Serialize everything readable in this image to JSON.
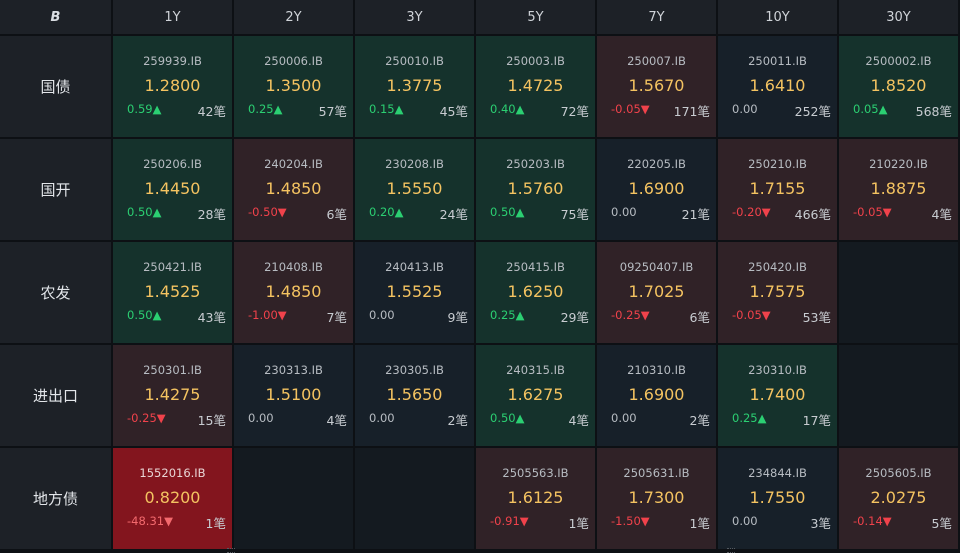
{
  "header": {
    "corner_label": "B",
    "columns": [
      "1Y",
      "2Y",
      "3Y",
      "5Y",
      "7Y",
      "10Y",
      "30Y"
    ]
  },
  "rows": [
    {
      "label": "国债",
      "cells": [
        {
          "code": "259939.IB",
          "price": "1.2800",
          "change": "0.59▲",
          "count": "42笔",
          "state": "up"
        },
        {
          "code": "250006.IB",
          "price": "1.3500",
          "change": "0.25▲",
          "count": "57笔",
          "state": "up"
        },
        {
          "code": "250010.IB",
          "price": "1.3775",
          "change": "0.15▲",
          "count": "45笔",
          "state": "up"
        },
        {
          "code": "250003.IB",
          "price": "1.4725",
          "change": "0.40▲",
          "count": "72笔",
          "state": "up"
        },
        {
          "code": "250007.IB",
          "price": "1.5670",
          "change": "-0.05▼",
          "count": "171笔",
          "state": "down"
        },
        {
          "code": "250011.IB",
          "price": "1.6410",
          "change": "0.00",
          "count": "252笔",
          "state": "flat"
        },
        {
          "code": "2500002.IB",
          "price": "1.8520",
          "change": "0.05▲",
          "count": "568笔",
          "state": "up"
        }
      ]
    },
    {
      "label": "国开",
      "cells": [
        {
          "code": "250206.IB",
          "price": "1.4450",
          "change": "0.50▲",
          "count": "28笔",
          "state": "up"
        },
        {
          "code": "240204.IB",
          "price": "1.4850",
          "change": "-0.50▼",
          "count": "6笔",
          "state": "down"
        },
        {
          "code": "230208.IB",
          "price": "1.5550",
          "change": "0.20▲",
          "count": "24笔",
          "state": "up"
        },
        {
          "code": "250203.IB",
          "price": "1.5760",
          "change": "0.50▲",
          "count": "75笔",
          "state": "up"
        },
        {
          "code": "220205.IB",
          "price": "1.6900",
          "change": "0.00",
          "count": "21笔",
          "state": "flat"
        },
        {
          "code": "250210.IB",
          "price": "1.7155",
          "change": "-0.20▼",
          "count": "466笔",
          "state": "down"
        },
        {
          "code": "210220.IB",
          "price": "1.8875",
          "change": "-0.05▼",
          "count": "4笔",
          "state": "down"
        }
      ]
    },
    {
      "label": "农发",
      "cells": [
        {
          "code": "250421.IB",
          "price": "1.4525",
          "change": "0.50▲",
          "count": "43笔",
          "state": "up"
        },
        {
          "code": "210408.IB",
          "price": "1.4850",
          "change": "-1.00▼",
          "count": "7笔",
          "state": "down"
        },
        {
          "code": "240413.IB",
          "price": "1.5525",
          "change": "0.00",
          "count": "9笔",
          "state": "flat"
        },
        {
          "code": "250415.IB",
          "price": "1.6250",
          "change": "0.25▲",
          "count": "29笔",
          "state": "up"
        },
        {
          "code": "09250407.IB",
          "price": "1.7025",
          "change": "-0.25▼",
          "count": "6笔",
          "state": "down"
        },
        {
          "code": "250420.IB",
          "price": "1.7575",
          "change": "-0.05▼",
          "count": "53笔",
          "state": "down"
        },
        {
          "state": "empty"
        }
      ]
    },
    {
      "label": "进出口",
      "cells": [
        {
          "code": "250301.IB",
          "price": "1.4275",
          "change": "-0.25▼",
          "count": "15笔",
          "state": "down"
        },
        {
          "code": "230313.IB",
          "price": "1.5100",
          "change": "0.00",
          "count": "4笔",
          "state": "flat"
        },
        {
          "code": "230305.IB",
          "price": "1.5650",
          "change": "0.00",
          "count": "2笔",
          "state": "flat"
        },
        {
          "code": "240315.IB",
          "price": "1.6275",
          "change": "0.50▲",
          "count": "4笔",
          "state": "up"
        },
        {
          "code": "210310.IB",
          "price": "1.6900",
          "change": "0.00",
          "count": "2笔",
          "state": "flat"
        },
        {
          "code": "230310.IB",
          "price": "1.7400",
          "change": "0.25▲",
          "count": "17笔",
          "state": "up"
        },
        {
          "state": "empty"
        }
      ]
    },
    {
      "label": "地方债",
      "cells": [
        {
          "code": "1552016.IB",
          "price": "0.8200",
          "change": "-48.31▼",
          "count": "1笔",
          "state": "hot"
        },
        {
          "state": "empty"
        },
        {
          "state": "empty"
        },
        {
          "code": "2505563.IB",
          "price": "1.6125",
          "change": "-0.91▼",
          "count": "1笔",
          "state": "down"
        },
        {
          "code": "2505631.IB",
          "price": "1.7300",
          "change": "-1.50▼",
          "count": "1笔",
          "state": "down"
        },
        {
          "code": "234844.IB",
          "price": "1.7550",
          "change": "0.00",
          "count": "3笔",
          "state": "flat"
        },
        {
          "code": "2505605.IB",
          "price": "2.0275",
          "change": "-0.14▼",
          "count": "5笔",
          "state": "down"
        }
      ]
    }
  ],
  "colors": {
    "up": "#2bcf72",
    "down": "#f0424b",
    "price": "#f4c361"
  }
}
